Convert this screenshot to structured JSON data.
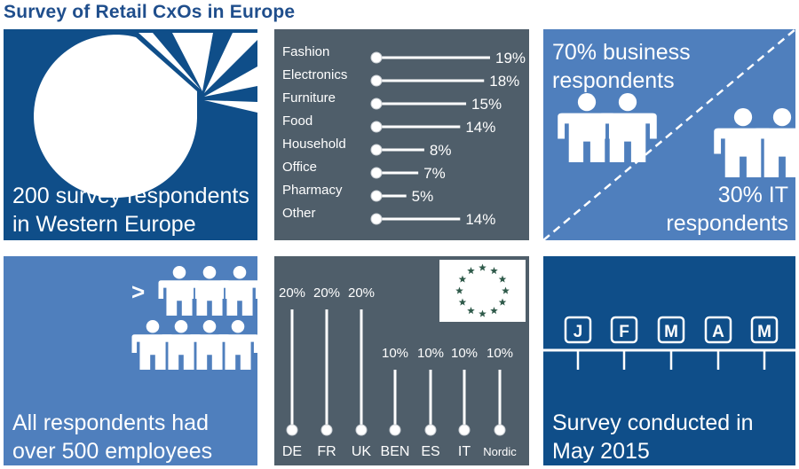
{
  "title": "Survey of Retail CxOs in Europe",
  "colors": {
    "navy": "#0f4e89",
    "slate": "#4f5e6a",
    "blue": "#4f7fbd",
    "title": "#1f4e8c"
  },
  "respondents": {
    "line1": "200 survey respondents",
    "line2": "in Western Europe"
  },
  "chart_data": [
    {
      "type": "bar",
      "orientation": "horizontal",
      "categories": [
        "Fashion",
        "Electronics",
        "Furniture",
        "Food",
        "Household",
        "Office",
        "Pharmacy",
        "Other"
      ],
      "values": [
        19,
        18,
        15,
        14,
        8,
        7,
        5,
        14
      ],
      "labels": [
        "19%",
        "18%",
        "15%",
        "14%",
        "8%",
        "7%",
        "5%",
        "14%"
      ],
      "xlim": [
        0,
        19
      ]
    },
    {
      "type": "bar",
      "orientation": "vertical",
      "categories": [
        "DE",
        "FR",
        "UK",
        "BEN",
        "ES",
        "IT",
        "Nordic"
      ],
      "values": [
        20,
        20,
        20,
        10,
        10,
        10,
        10
      ],
      "labels": [
        "20%",
        "20%",
        "20%",
        "10%",
        "10%",
        "10%",
        "10%"
      ],
      "ylim": [
        0,
        20
      ]
    },
    {
      "type": "pie",
      "values": [
        70,
        30
      ],
      "labels": [
        "70% business respondents",
        "30% IT respondents"
      ]
    }
  ],
  "business": {
    "line1": "70% business",
    "line2": "respondents"
  },
  "it": {
    "line1": "30% IT",
    "line2": "respondents"
  },
  "employees": {
    "prefix": ">",
    "line1": "All respondents had",
    "line2": "over 500 employees"
  },
  "timeline": {
    "months": [
      "J",
      "F",
      "M",
      "A",
      "M"
    ],
    "line1": "Survey conducted in",
    "line2": "May 2015"
  }
}
